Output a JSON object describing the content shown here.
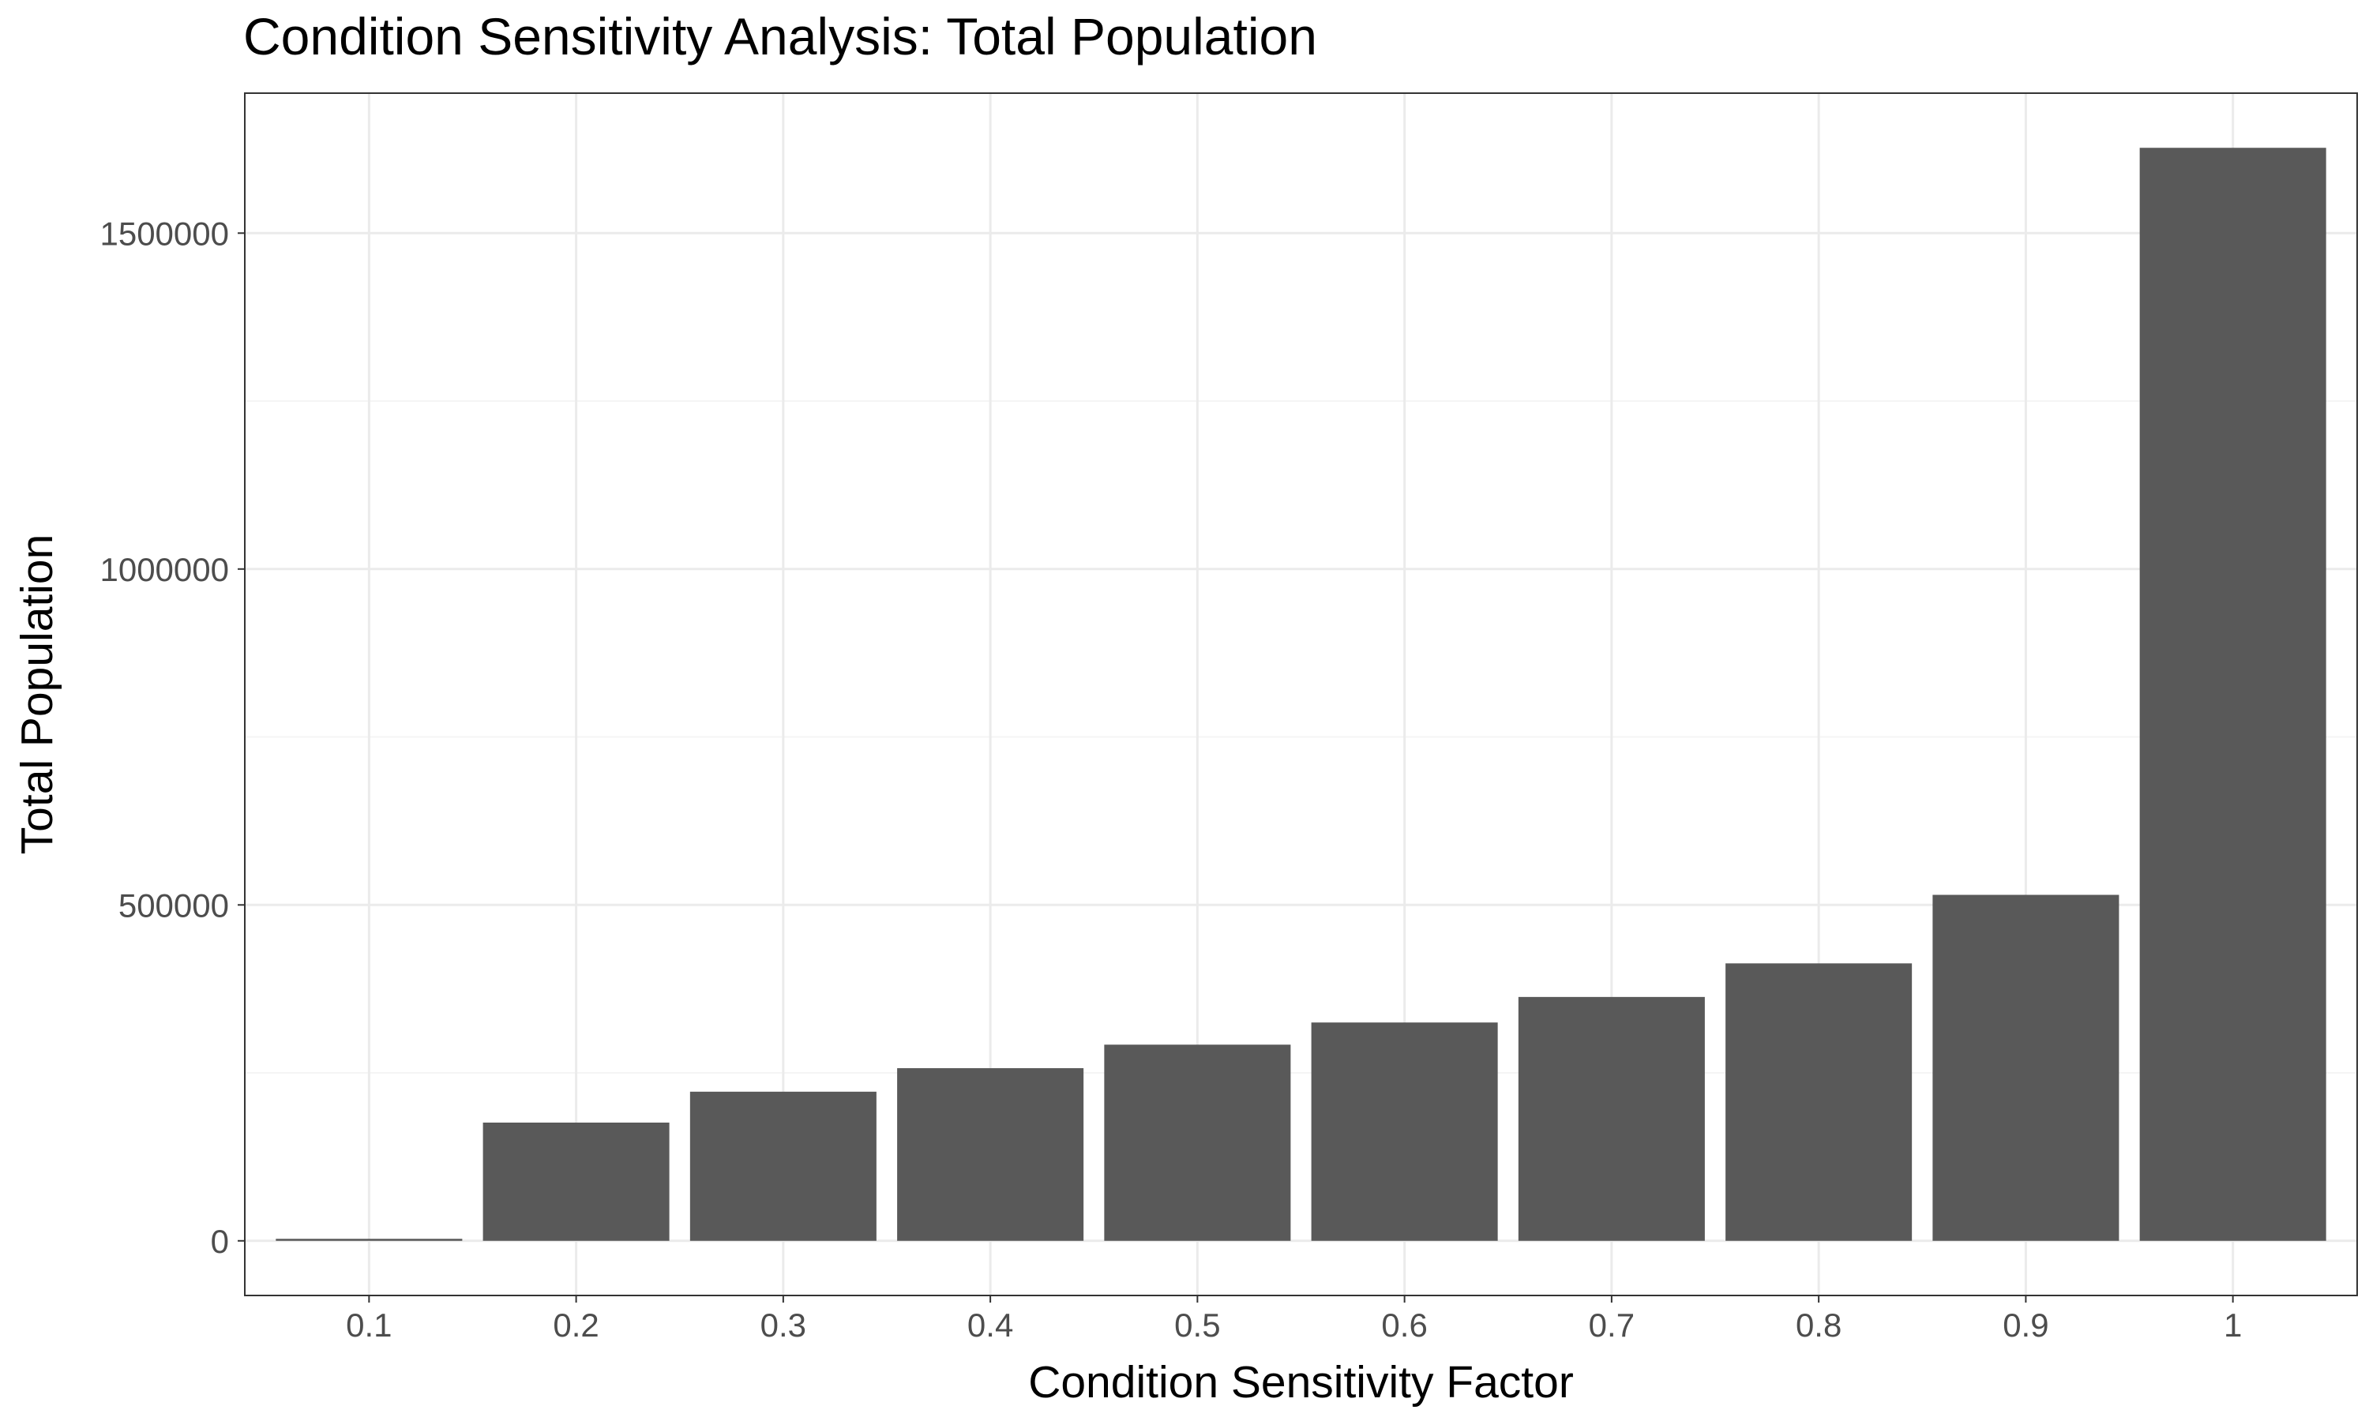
{
  "chart_data": {
    "type": "bar",
    "title": "Condition Sensitivity Analysis: Total Population",
    "xlabel": "Condition Sensitivity Factor",
    "ylabel": "Total Population",
    "categories": [
      "0.1",
      "0.2",
      "0.3",
      "0.4",
      "0.5",
      "0.6",
      "0.7",
      "0.8",
      "0.9",
      "1"
    ],
    "values": [
      3000,
      176000,
      222000,
      257000,
      292000,
      325000,
      363000,
      413000,
      515000,
      1627000
    ],
    "y_ticks": [
      0,
      500000,
      1000000,
      1500000
    ],
    "y_tick_labels": [
      "0",
      "500000",
      "1000000",
      "1500000"
    ],
    "ylim": [
      -81350,
      1708350
    ],
    "grid": true,
    "legend": "none",
    "colors": {
      "bar": "#595959",
      "grid_major": "#ebebeb",
      "grid_minor": "#f5f5f5",
      "panel_border": "#333333",
      "tick_label": "#4d4d4d"
    }
  }
}
